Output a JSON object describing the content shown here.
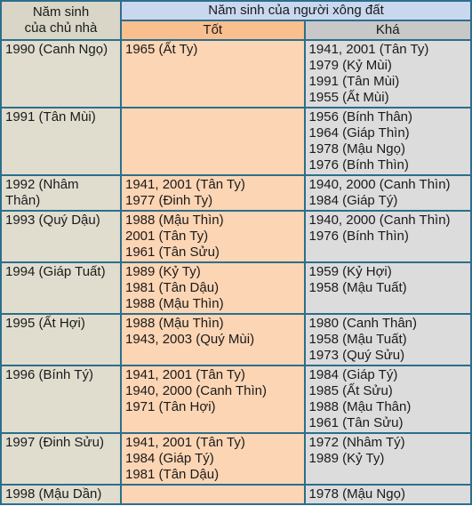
{
  "header": {
    "owner_col": [
      "Năm sinh",
      "của chủ nhà"
    ],
    "guest_col": "Năm sinh của người xông đất",
    "good_col": "Tốt",
    "fair_col": "Khá"
  },
  "rows": [
    {
      "owner": [
        "1990 (Canh Ngọ)"
      ],
      "good": [
        "1965 (Ất Ty)"
      ],
      "fair": [
        "1941, 2001 (Tân Ty)",
        "1979 (Kỷ Mùi)",
        "1991 (Tân Mùi)",
        "1955 (Ất Mùi)"
      ]
    },
    {
      "owner": [
        "1991 (Tân Mùi)"
      ],
      "good": [],
      "fair": [
        "1956 (Bính Thân)",
        "1964 (Giáp Thìn)",
        "1978 (Mậu Ngọ)",
        "1976 (Bính Thìn)"
      ]
    },
    {
      "owner": [
        "1992 (Nhâm",
        "Thân)"
      ],
      "good": [
        "1941, 2001 (Tân Ty)",
        "1977 (Đinh Ty)"
      ],
      "fair": [
        "1940, 2000 (Canh Thìn)",
        "1984 (Giáp Tý)"
      ]
    },
    {
      "owner": [
        "1993 (Quý Dậu)"
      ],
      "good": [
        "1988 (Mậu Thìn)",
        "2001 (Tân Ty)",
        "1961 (Tân Sửu)"
      ],
      "fair": [
        "1940, 2000 (Canh Thìn)",
        "1976 (Bính Thìn)"
      ]
    },
    {
      "owner": [
        "1994 (Giáp Tuất)"
      ],
      "good": [
        "1989 (Kỷ Ty)",
        "1981 (Tân Dậu)",
        "1988 (Mậu Thìn)"
      ],
      "fair": [
        "1959 (Kỷ Hợi)",
        "1958 (Mậu Tuất)"
      ]
    },
    {
      "owner": [
        "1995 (Ất Hợi)"
      ],
      "good": [
        "1988 (Mậu Thìn)",
        "1943, 2003 (Quý Mùi)"
      ],
      "fair": [
        "1980 (Canh Thân)",
        "1958 (Mậu Tuất)",
        "1973 (Quý Sửu)"
      ]
    },
    {
      "owner": [
        "1996 (Bính Tý)"
      ],
      "good": [
        "1941, 2001 (Tân Ty)",
        "1940, 2000 (Canh Thìn)",
        "1971 (Tân Hợi)"
      ],
      "fair": [
        "1984 (Giáp Tý)",
        "1985 (Ất Sửu)",
        "1988 (Mậu Thân)",
        "1961 (Tân Sửu)"
      ]
    },
    {
      "owner": [
        "1997 (Đinh Sửu)"
      ],
      "good": [
        "1941, 2001 (Tân Ty)",
        "1984 (Giáp Tý)",
        "1981 (Tân Dậu)"
      ],
      "fair": [
        " 1972 (Nhâm Tý)",
        "1989 (Kỷ Ty)"
      ]
    },
    {
      "owner": [
        "1998 (Mậu Dần)"
      ],
      "good": [],
      "fair": [
        "1978 (Mậu Ngọ)"
      ]
    }
  ],
  "colors": {
    "border": "#2c6e8c",
    "owner_bg": "#e0ddcf",
    "good_bg": "#fcd5b4",
    "fair_bg": "#dcdcdc",
    "guest_header_bg": "#c9d8ef"
  }
}
